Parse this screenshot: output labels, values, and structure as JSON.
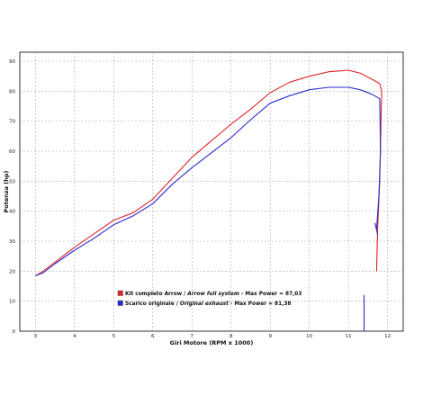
{
  "chart_data": {
    "type": "line",
    "xlabel": "Giri Motore (RPM x 1000)",
    "ylabel": "Potenza (hp)",
    "xlim": [
      2.6,
      12.4
    ],
    "ylim": [
      0,
      93
    ],
    "x_ticks": [
      "3",
      "4",
      "5",
      "6",
      "7",
      "8",
      "9",
      "10",
      "11",
      "12"
    ],
    "y_ticks": [
      "0",
      "10",
      "20",
      "30",
      "40",
      "50",
      "60",
      "70",
      "80",
      "90"
    ],
    "grid": true,
    "legend_position": "bottom-left",
    "series": [
      {
        "name_prefix": "Kit completo Arrow / ",
        "name_italic": "Arrow full system",
        "name_suffix": " - Max Power = 87,03",
        "color": "#e0242b",
        "points": [
          [
            3.0,
            18.5
          ],
          [
            3.2,
            20.0
          ],
          [
            3.5,
            23.0
          ],
          [
            4.0,
            28.0
          ],
          [
            4.5,
            32.5
          ],
          [
            5.0,
            37.0
          ],
          [
            5.5,
            39.5
          ],
          [
            6.0,
            44.0
          ],
          [
            6.5,
            51.0
          ],
          [
            7.0,
            58.0
          ],
          [
            7.5,
            63.5
          ],
          [
            8.0,
            69.0
          ],
          [
            8.5,
            74.0
          ],
          [
            9.0,
            79.5
          ],
          [
            9.5,
            83.0
          ],
          [
            10.0,
            85.0
          ],
          [
            10.5,
            86.5
          ],
          [
            11.0,
            87.0
          ],
          [
            11.3,
            86.0
          ],
          [
            11.6,
            84.0
          ],
          [
            11.8,
            82.5
          ],
          [
            11.85,
            80.0
          ],
          [
            11.8,
            50.0
          ],
          [
            11.75,
            35.0
          ],
          [
            11.72,
            20.0
          ]
        ]
      },
      {
        "name_prefix": "Scarico originale / ",
        "name_italic": "Original exhaust",
        "name_suffix": " - Max Power = 81,38",
        "color": "#2a2ad0",
        "points": [
          [
            3.0,
            18.5
          ],
          [
            3.2,
            19.5
          ],
          [
            3.5,
            22.5
          ],
          [
            4.0,
            27.0
          ],
          [
            4.5,
            31.0
          ],
          [
            5.0,
            35.5
          ],
          [
            5.5,
            38.5
          ],
          [
            6.0,
            42.5
          ],
          [
            6.5,
            49.0
          ],
          [
            7.0,
            54.5
          ],
          [
            7.5,
            59.5
          ],
          [
            8.0,
            64.5
          ],
          [
            8.5,
            70.5
          ],
          [
            9.0,
            76.0
          ],
          [
            9.5,
            78.5
          ],
          [
            10.0,
            80.5
          ],
          [
            10.5,
            81.3
          ],
          [
            11.0,
            81.3
          ],
          [
            11.3,
            80.5
          ],
          [
            11.6,
            79.0
          ],
          [
            11.8,
            77.5
          ],
          [
            11.82,
            60.0
          ],
          [
            11.78,
            45.0
          ],
          [
            11.72,
            34.0
          ],
          [
            11.68,
            36.0
          ],
          [
            11.75,
            32.0
          ]
        ]
      }
    ],
    "extra_line": {
      "color": "#2a2ad0",
      "points": [
        [
          11.4,
          0
        ],
        [
          11.4,
          12.0
        ]
      ]
    }
  }
}
